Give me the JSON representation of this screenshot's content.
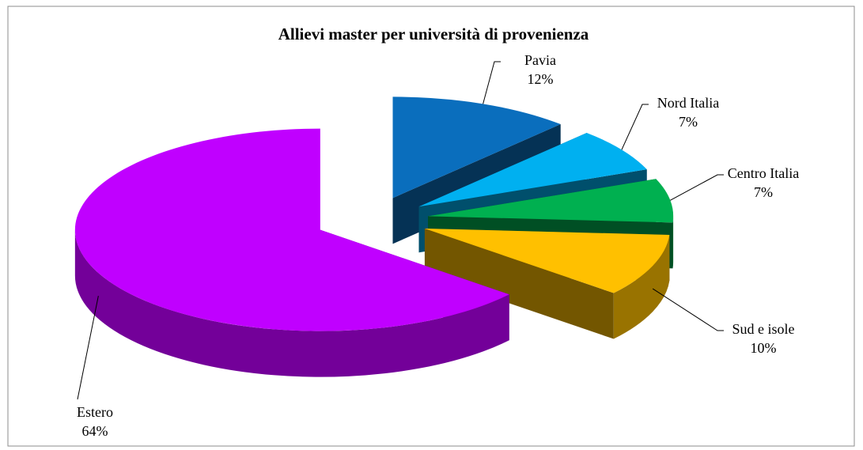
{
  "chart_data": {
    "type": "pie3d",
    "title": "Allievi master per università di provenienza",
    "categories": [
      "Pavia",
      "Nord Italia",
      "Centro Italia",
      "Sud e isole",
      "Estero"
    ],
    "values": [
      12,
      7,
      7,
      10,
      64
    ],
    "value_labels": [
      "12%",
      "7%",
      "7%",
      "10%",
      "64%"
    ],
    "colors": [
      "#0a6ebd",
      "#00b0f0",
      "#00b050",
      "#ffc000",
      "#c000ff"
    ]
  }
}
